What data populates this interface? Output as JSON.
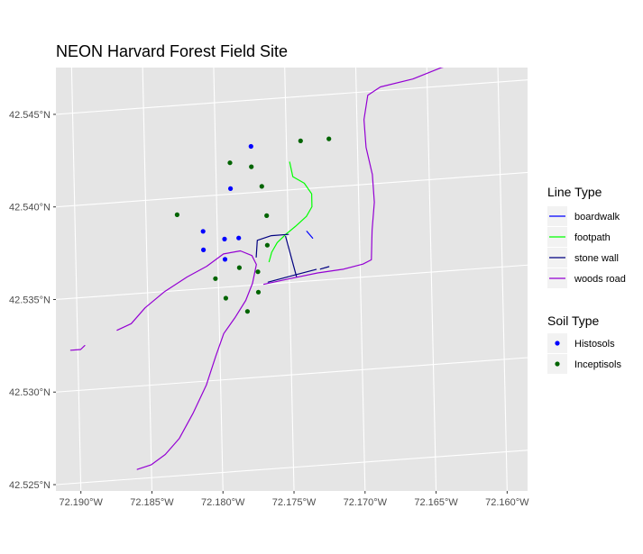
{
  "chart_data": {
    "type": "map",
    "title": "NEON Harvard Forest Field Site",
    "grid": true,
    "legend_position": "right",
    "panel_background": "#e5e5e5",
    "x_ticks": [
      "72.190°W",
      "72.185°W",
      "72.180°W",
      "72.175°W",
      "72.170°W",
      "72.165°W",
      "72.160°W"
    ],
    "y_ticks": [
      "42.525°N",
      "42.530°N",
      "42.535°N",
      "42.540°N",
      "42.545°N"
    ],
    "line_legend": {
      "title": "Line Type",
      "items": [
        {
          "label": "boardwalk",
          "color": "#0000ff"
        },
        {
          "label": "footpath",
          "color": "#00ff00"
        },
        {
          "label": "stone wall",
          "color": "#000080"
        },
        {
          "label": "woods road",
          "color": "#9400d3"
        }
      ]
    },
    "point_legend": {
      "title": "Soil Type",
      "items": [
        {
          "label": "Histosols",
          "color": "#0000ff"
        },
        {
          "label": "Inceptisols",
          "color": "#006400"
        }
      ]
    },
    "plots": [
      {
        "soil": "Histosols",
        "lon": -72.1775,
        "lat": 42.5425
      },
      {
        "soil": "Histosols",
        "lon": -72.179,
        "lat": 42.5403
      },
      {
        "soil": "Histosols",
        "lon": -72.181,
        "lat": 42.5381
      },
      {
        "soil": "Histosols",
        "lon": -72.1795,
        "lat": 42.5376
      },
      {
        "soil": "Histosols",
        "lon": -72.1785,
        "lat": 42.5376
      },
      {
        "soil": "Histosols",
        "lon": -72.181,
        "lat": 42.5371
      },
      {
        "soil": "Histosols",
        "lon": -72.1795,
        "lat": 42.5365
      },
      {
        "soil": "Inceptisols",
        "lon": -72.174,
        "lat": 42.5426
      },
      {
        "soil": "Inceptisols",
        "lon": -72.172,
        "lat": 42.5426
      },
      {
        "soil": "Inceptisols",
        "lon": -72.179,
        "lat": 42.5417
      },
      {
        "soil": "Inceptisols",
        "lon": -72.1775,
        "lat": 42.5414
      },
      {
        "soil": "Inceptisols",
        "lon": -72.1768,
        "lat": 42.5403
      },
      {
        "soil": "Inceptisols",
        "lon": -72.1828,
        "lat": 42.5391
      },
      {
        "soil": "Inceptisols",
        "lon": -72.1765,
        "lat": 42.5387
      },
      {
        "soil": "Inceptisols",
        "lon": -72.1765,
        "lat": 42.5371
      },
      {
        "soil": "Inceptisols",
        "lon": -72.1785,
        "lat": 42.536
      },
      {
        "soil": "Inceptisols",
        "lon": -72.1772,
        "lat": 42.5357
      },
      {
        "soil": "Inceptisols",
        "lon": -72.1802,
        "lat": 42.5355
      },
      {
        "soil": "Inceptisols",
        "lon": -72.1795,
        "lat": 42.5344
      },
      {
        "soil": "Inceptisols",
        "lon": -72.1772,
        "lat": 42.5346
      },
      {
        "soil": "Inceptisols",
        "lon": -72.178,
        "lat": 42.5336
      }
    ],
    "lines": [
      {
        "type": "woods road",
        "coords": [
          [
            -72.186,
            42.5255
          ],
          [
            -72.185,
            42.5257
          ],
          [
            -72.184,
            42.5262
          ],
          [
            -72.183,
            42.527
          ],
          [
            -72.182,
            42.5283
          ],
          [
            -72.181,
            42.5298
          ],
          [
            -72.1803,
            42.5313
          ],
          [
            -72.1797,
            42.5325
          ],
          [
            -72.1789,
            42.5333
          ],
          [
            -72.1781,
            42.5342
          ],
          [
            -72.1776,
            42.5351
          ],
          [
            -72.1773,
            42.5361
          ],
          [
            -72.1776,
            42.5366
          ],
          [
            -72.1784,
            42.5369
          ],
          [
            -72.1796,
            42.5368
          ],
          [
            -72.1808,
            42.5362
          ],
          [
            -72.1822,
            42.5357
          ],
          [
            -72.1838,
            42.535
          ],
          [
            -72.1852,
            42.5342
          ],
          [
            -72.1862,
            42.5334
          ],
          [
            -72.1872,
            42.5331
          ]
        ]
      },
      {
        "type": "woods road",
        "coords": [
          [
            -72.1905,
            42.5322
          ],
          [
            -72.1898,
            42.5322
          ],
          [
            -72.1895,
            42.5324
          ]
        ]
      },
      {
        "type": "woods road",
        "coords": [
          [
            -72.1768,
            42.535
          ],
          [
            -72.175,
            42.5352
          ],
          [
            -72.173,
            42.5354
          ],
          [
            -72.1712,
            42.5355
          ],
          [
            -72.1698,
            42.5357
          ],
          [
            -72.1692,
            42.5359
          ],
          [
            -72.1691,
            42.5375
          ],
          [
            -72.1689,
            42.539
          ],
          [
            -72.169,
            42.5405
          ],
          [
            -72.1694,
            42.542
          ],
          [
            -72.1695,
            42.5435
          ],
          [
            -72.1692,
            42.5448
          ],
          [
            -72.1683,
            42.5452
          ],
          [
            -72.166,
            42.5455
          ],
          [
            -72.164,
            42.546
          ],
          [
            -72.162,
            42.5463
          ],
          [
            -72.1605,
            42.5462
          ],
          [
            -72.1597,
            42.546
          ]
        ]
      },
      {
        "type": "footpath",
        "coords": [
          [
            -72.1748,
            42.5415
          ],
          [
            -72.1746,
            42.5407
          ],
          [
            -72.1738,
            42.5403
          ],
          [
            -72.1733,
            42.5397
          ],
          [
            -72.1733,
            42.539
          ],
          [
            -72.1737,
            42.5385
          ],
          [
            -72.1745,
            42.538
          ],
          [
            -72.1752,
            42.5376
          ],
          [
            -72.1758,
            42.5372
          ],
          [
            -72.1762,
            42.5367
          ],
          [
            -72.1764,
            42.5362
          ]
        ]
      },
      {
        "type": "stone wall",
        "coords": [
          [
            -72.175,
            42.5376
          ],
          [
            -72.1762,
            42.5376
          ],
          [
            -72.1772,
            42.5374
          ],
          [
            -72.1773,
            42.5365
          ]
        ]
      },
      {
        "type": "stone wall",
        "coords": [
          [
            -72.1752,
            42.5375
          ],
          [
            -72.1745,
            42.5353
          ]
        ]
      },
      {
        "type": "stone wall",
        "coords": [
          [
            -72.1765,
            42.5351
          ],
          [
            -72.1745,
            42.5354
          ],
          [
            -72.1731,
            42.5356
          ]
        ]
      },
      {
        "type": "stone wall",
        "coords": [
          [
            -72.1728,
            42.5356
          ],
          [
            -72.1722,
            42.5357
          ]
        ]
      },
      {
        "type": "boardwalk",
        "coords": [
          [
            -72.1737,
            42.5377
          ],
          [
            -72.1733,
            42.5373
          ]
        ]
      }
    ]
  }
}
